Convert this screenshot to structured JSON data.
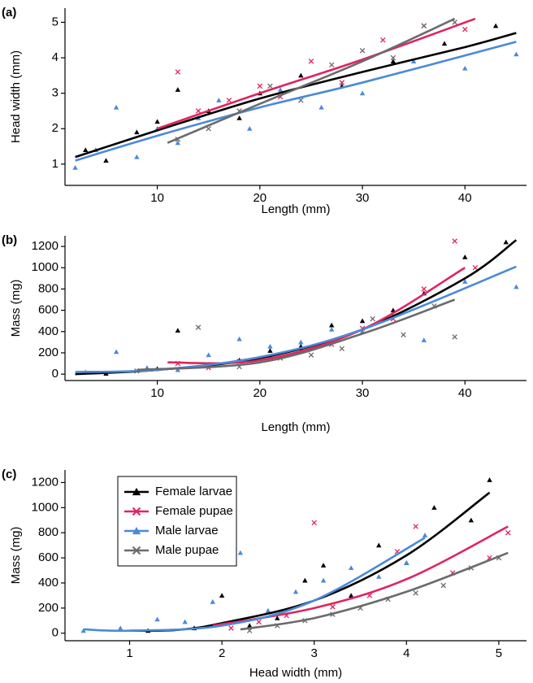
{
  "chart_data": [
    {
      "type": "scatter",
      "panel_label": "(a)",
      "xlabel": "Length (mm)",
      "ylabel": "Head width (mm)",
      "xlim": [
        1,
        46
      ],
      "ylim": [
        0.4,
        5.4
      ],
      "xticks": [
        10,
        20,
        30,
        40
      ],
      "yticks": [
        1,
        2,
        3,
        4,
        5
      ],
      "series": [
        {
          "color": "#000000",
          "marker": "triangle",
          "x": [
            3,
            5,
            8,
            10,
            12,
            15,
            18,
            20,
            24,
            28,
            33,
            38,
            43
          ],
          "values": [
            1.4,
            1.1,
            1.9,
            2.2,
            3.1,
            2.5,
            2.3,
            3.0,
            3.5,
            3.2,
            3.9,
            4.4,
            4.9
          ],
          "fit": {
            "x": [
              2,
              10,
              20,
              30,
              40,
              45
            ],
            "values": [
              1.2,
              1.95,
              2.85,
              3.6,
              4.3,
              4.7
            ]
          }
        },
        {
          "color": "#e0245e",
          "marker": "x",
          "x": [
            12,
            14,
            17,
            20,
            22,
            25,
            28,
            32,
            36,
            40
          ],
          "values": [
            3.6,
            2.5,
            2.8,
            3.2,
            2.9,
            3.9,
            3.3,
            4.5,
            4.9,
            4.8
          ],
          "fit": {
            "x": [
              10,
              20,
              30,
              41
            ],
            "values": [
              2.0,
              3.0,
              3.95,
              5.1
            ]
          }
        },
        {
          "color": "#4a8ad8",
          "marker": "triangle",
          "x": [
            2,
            4,
            6,
            8,
            10,
            12,
            14,
            16,
            19,
            22,
            26,
            30,
            35,
            40,
            45
          ],
          "values": [
            0.9,
            1.4,
            2.6,
            1.2,
            2.0,
            1.6,
            2.3,
            2.8,
            2.0,
            3.1,
            2.6,
            3.0,
            3.9,
            3.7,
            4.1
          ],
          "fit": {
            "x": [
              2,
              10,
              20,
              30,
              45
            ],
            "values": [
              1.1,
              1.8,
              2.6,
              3.3,
              4.45
            ]
          }
        },
        {
          "color": "#6b6b6b",
          "marker": "x",
          "x": [
            12,
            15,
            18,
            21,
            24,
            27,
            30,
            33,
            36,
            39
          ],
          "values": [
            1.7,
            2.0,
            2.5,
            3.2,
            2.8,
            3.8,
            4.2,
            4.0,
            4.9,
            5.0
          ],
          "fit": {
            "x": [
              11,
              20,
              30,
              39
            ],
            "values": [
              1.6,
              2.7,
              3.9,
              5.1
            ]
          }
        }
      ]
    },
    {
      "type": "scatter",
      "panel_label": "(b)",
      "xlabel": "Length (mm)",
      "ylabel": "Mass (mg)",
      "xlim": [
        1,
        46
      ],
      "ylim": [
        -60,
        1300
      ],
      "xticks": [
        10,
        20,
        30,
        40
      ],
      "yticks": [
        0,
        200,
        400,
        600,
        800,
        1000,
        1200
      ],
      "series": [
        {
          "color": "#000000",
          "marker": "triangle",
          "x": [
            5,
            10,
            12,
            15,
            18,
            21,
            24,
            27,
            30,
            33,
            36,
            40,
            44
          ],
          "values": [
            5,
            50,
            410,
            90,
            130,
            220,
            260,
            460,
            500,
            600,
            760,
            1100,
            1240
          ],
          "fit": {
            "x": [
              2,
              10,
              20,
              30,
              40,
              45
            ],
            "values": [
              0,
              40,
              150,
              420,
              900,
              1260
            ]
          }
        },
        {
          "color": "#e0245e",
          "marker": "x",
          "x": [
            12,
            15,
            18,
            21,
            24,
            27,
            30,
            33,
            36,
            39,
            41
          ],
          "values": [
            100,
            60,
            120,
            150,
            220,
            280,
            430,
            520,
            800,
            1250,
            1000
          ],
          "fit": {
            "x": [
              11,
              20,
              30,
              40
            ],
            "values": [
              110,
              130,
              420,
              1000
            ]
          }
        },
        {
          "color": "#4a8ad8",
          "marker": "triangle",
          "x": [
            3,
            6,
            9,
            12,
            15,
            18,
            21,
            24,
            27,
            30,
            33,
            36,
            40,
            45
          ],
          "values": [
            20,
            210,
            60,
            40,
            180,
            330,
            260,
            300,
            420,
            400,
            550,
            320,
            870,
            820
          ],
          "fit": {
            "x": [
              2,
              10,
              20,
              30,
              45
            ],
            "values": [
              20,
              40,
              160,
              420,
              1010
            ]
          }
        },
        {
          "color": "#6b6b6b",
          "marker": "x",
          "x": [
            8,
            14,
            18,
            22,
            25,
            28,
            31,
            34,
            37,
            39
          ],
          "values": [
            30,
            440,
            70,
            150,
            180,
            240,
            520,
            370,
            640,
            350
          ],
          "fit": {
            "x": [
              8,
              20,
              30,
              39
            ],
            "values": [
              40,
              110,
              380,
              700
            ]
          }
        }
      ]
    },
    {
      "type": "scatter",
      "panel_label": "(c)",
      "xlabel": "Head width (mm)",
      "ylabel": "Mass (mg)",
      "xlim": [
        0.3,
        5.3
      ],
      "ylim": [
        -60,
        1300
      ],
      "xticks": [
        1,
        2,
        3,
        4,
        5
      ],
      "yticks": [
        0,
        200,
        400,
        600,
        800,
        1000,
        1200
      ],
      "legend": "upper left",
      "series": [
        {
          "name": "Female larvae",
          "color": "#000000",
          "marker": "triangle",
          "x": [
            1.2,
            1.7,
            2.0,
            2.3,
            2.6,
            2.9,
            3.1,
            3.4,
            3.7,
            4.0,
            4.3,
            4.7,
            4.9
          ],
          "values": [
            20,
            40,
            300,
            60,
            120,
            420,
            540,
            300,
            700,
            560,
            1000,
            900,
            1220
          ],
          "fit": {
            "x": [
              1,
              1.5,
              2,
              3,
              4,
              4.9
            ],
            "values": [
              20,
              25,
              80,
              260,
              620,
              1120
            ]
          }
        },
        {
          "name": "Female pupae",
          "color": "#e0245e",
          "marker": "x",
          "x": [
            2.1,
            2.4,
            2.7,
            3.0,
            3.2,
            3.6,
            3.9,
            4.1,
            4.5,
            4.9,
            5.1
          ],
          "values": [
            40,
            90,
            140,
            880,
            210,
            300,
            650,
            850,
            480,
            600,
            800
          ],
          "fit": {
            "x": [
              1.9,
              3,
              4,
              5.1
            ],
            "values": [
              60,
              200,
              430,
              850
            ]
          }
        },
        {
          "name": "Male larvae",
          "color": "#4a8ad8",
          "marker": "triangle",
          "x": [
            0.5,
            0.9,
            1.3,
            1.6,
            1.9,
            2.2,
            2.5,
            2.8,
            3.1,
            3.4,
            3.7,
            4.0,
            4.2
          ],
          "values": [
            20,
            40,
            110,
            90,
            250,
            640,
            180,
            330,
            420,
            520,
            450,
            560,
            780
          ],
          "fit": {
            "x": [
              0.5,
              1,
              2,
              3,
              4.2
            ],
            "values": [
              30,
              20,
              60,
              260,
              760
            ]
          }
        },
        {
          "name": "Male pupae",
          "color": "#6b6b6b",
          "marker": "x",
          "x": [
            2.3,
            2.6,
            2.9,
            3.2,
            3.5,
            3.8,
            4.1,
            4.4,
            4.7,
            5.0
          ],
          "values": [
            20,
            60,
            100,
            150,
            200,
            270,
            320,
            380,
            520,
            600
          ],
          "fit": {
            "x": [
              2.2,
              3,
              4,
              5.1
            ],
            "values": [
              30,
              120,
              330,
              640
            ]
          }
        }
      ]
    }
  ]
}
